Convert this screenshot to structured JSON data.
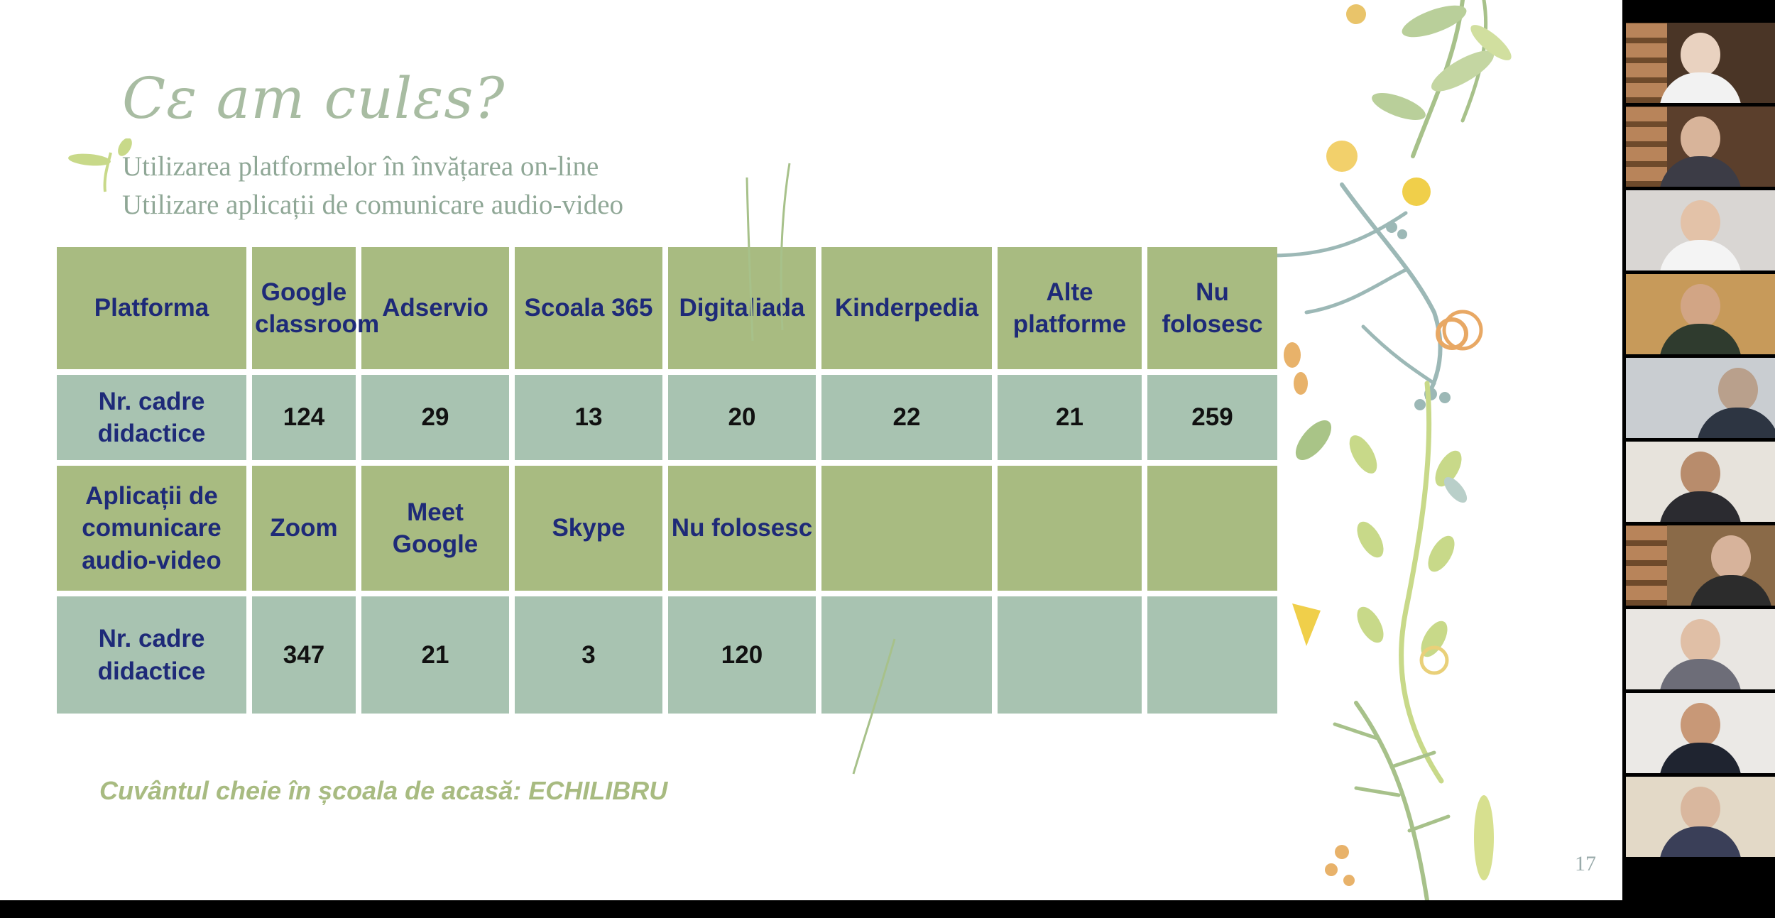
{
  "slide": {
    "title": "Cɛ am culɛs?",
    "subtitle1": "Utilizarea platformelor în învățarea on-line",
    "subtitle2": "Utilizare aplicații de comunicare audio-video",
    "footer": "Cuvântul cheie în școala de acasă: ECHILIBRU",
    "page_number": "17",
    "table": {
      "row1": [
        "Platforma",
        "Google classroom",
        "Adservio",
        "Scoala 365",
        "Digitaliada",
        "Kinderpedia",
        "Alte platforme",
        "Nu folosesc"
      ],
      "row2": [
        "Nr. cadre didactice",
        "124",
        "29",
        "13",
        "20",
        "22",
        "21",
        "259"
      ],
      "row3": [
        "Aplicații de comunicare audio-video",
        "Zoom",
        "Meet Google",
        "Skype",
        "Nu folosesc",
        "",
        "",
        ""
      ],
      "row4": [
        "Nr. cadre didactice",
        "347",
        "21",
        "3",
        "120",
        "",
        "",
        ""
      ]
    }
  },
  "colors": {
    "green_cell": "#a8bb81",
    "teal_cell": "#a8c3b1",
    "header_text": "#1e2a78",
    "title_color": "#a8bca2"
  },
  "gallery": {
    "participant_count": 10
  }
}
